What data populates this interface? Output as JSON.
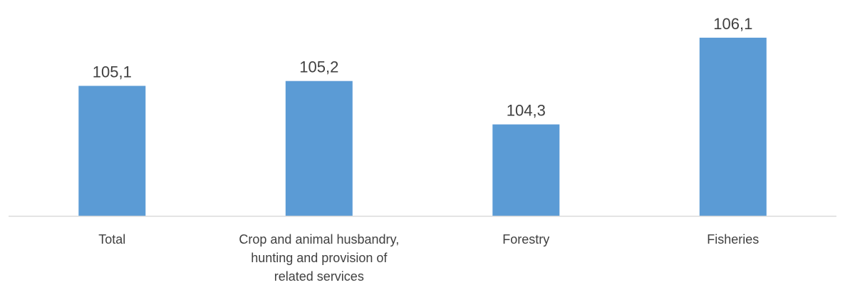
{
  "chart_data": {
    "type": "bar",
    "categories": [
      "Total",
      "Crop and animal husbandry, hunting and provision of related services",
      "Forestry",
      "Fisheries"
    ],
    "category_label_lines": [
      [
        "Total"
      ],
      [
        "Crop and animal husbandry,",
        "hunting and provision of",
        "related services"
      ],
      [
        "Forestry"
      ],
      [
        "Fisheries"
      ]
    ],
    "values": [
      105.1,
      105.2,
      104.3,
      106.1
    ],
    "data_labels": [
      "105,1",
      "105,2",
      "104,3",
      "106,1"
    ],
    "title": "",
    "xlabel": "",
    "ylabel": "",
    "ylim": [
      102.4,
      106.35
    ],
    "grid": false,
    "legend": "none",
    "colors": {
      "bar": "#5B9BD5",
      "axis": "#D9D9D9",
      "text": "#404040"
    }
  }
}
